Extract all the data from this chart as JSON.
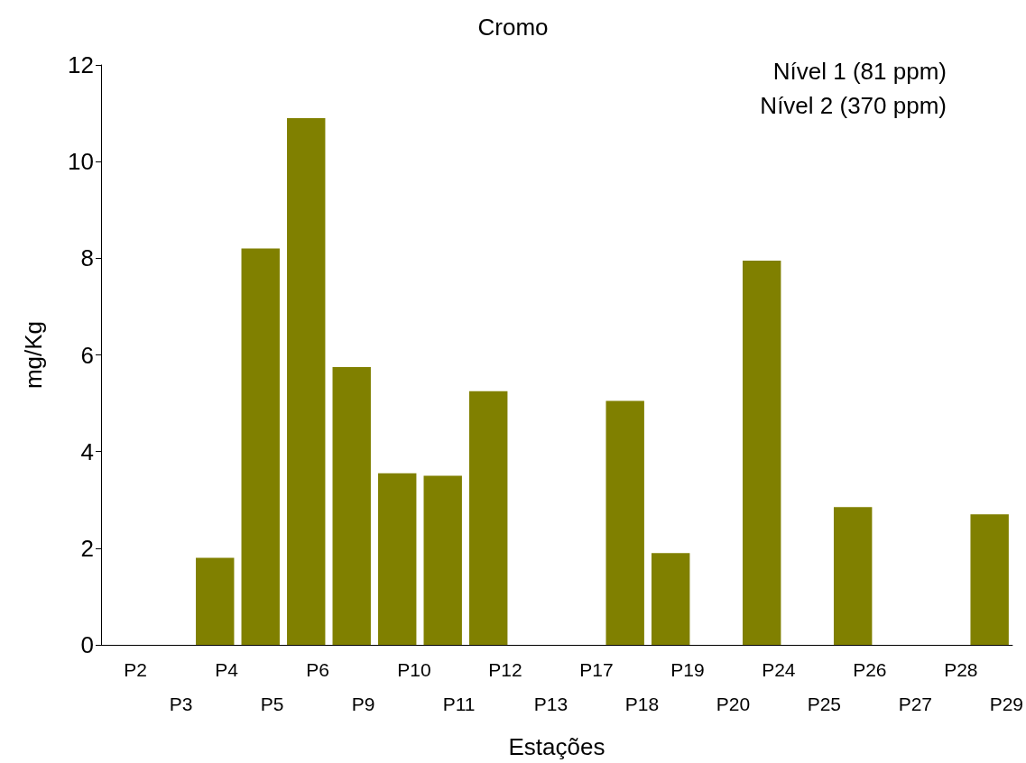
{
  "chart_data": {
    "type": "bar",
    "title": "Cromo",
    "xlabel": "Estações",
    "ylabel": "mg/Kg",
    "categories": [
      "P2",
      "P3",
      "P4",
      "P5",
      "P6",
      "P9",
      "P10",
      "P11",
      "P12",
      "P13",
      "P17",
      "P18",
      "P19",
      "P20",
      "P24",
      "P25",
      "P26",
      "P27",
      "P28",
      "P29"
    ],
    "values": [
      0,
      0,
      1.8,
      8.2,
      10.9,
      5.75,
      3.55,
      3.5,
      5.25,
      0,
      0,
      5.05,
      1.9,
      0,
      7.95,
      0,
      2.85,
      0,
      0,
      2.7
    ],
    "color": "#808000",
    "ylim": [
      0,
      12
    ],
    "yticks": [
      0,
      2,
      4,
      6,
      8,
      10,
      12
    ],
    "grid": false,
    "annotations": [
      "Nível 1 (81 ppm)",
      "Nível 2 (370 ppm)"
    ]
  }
}
